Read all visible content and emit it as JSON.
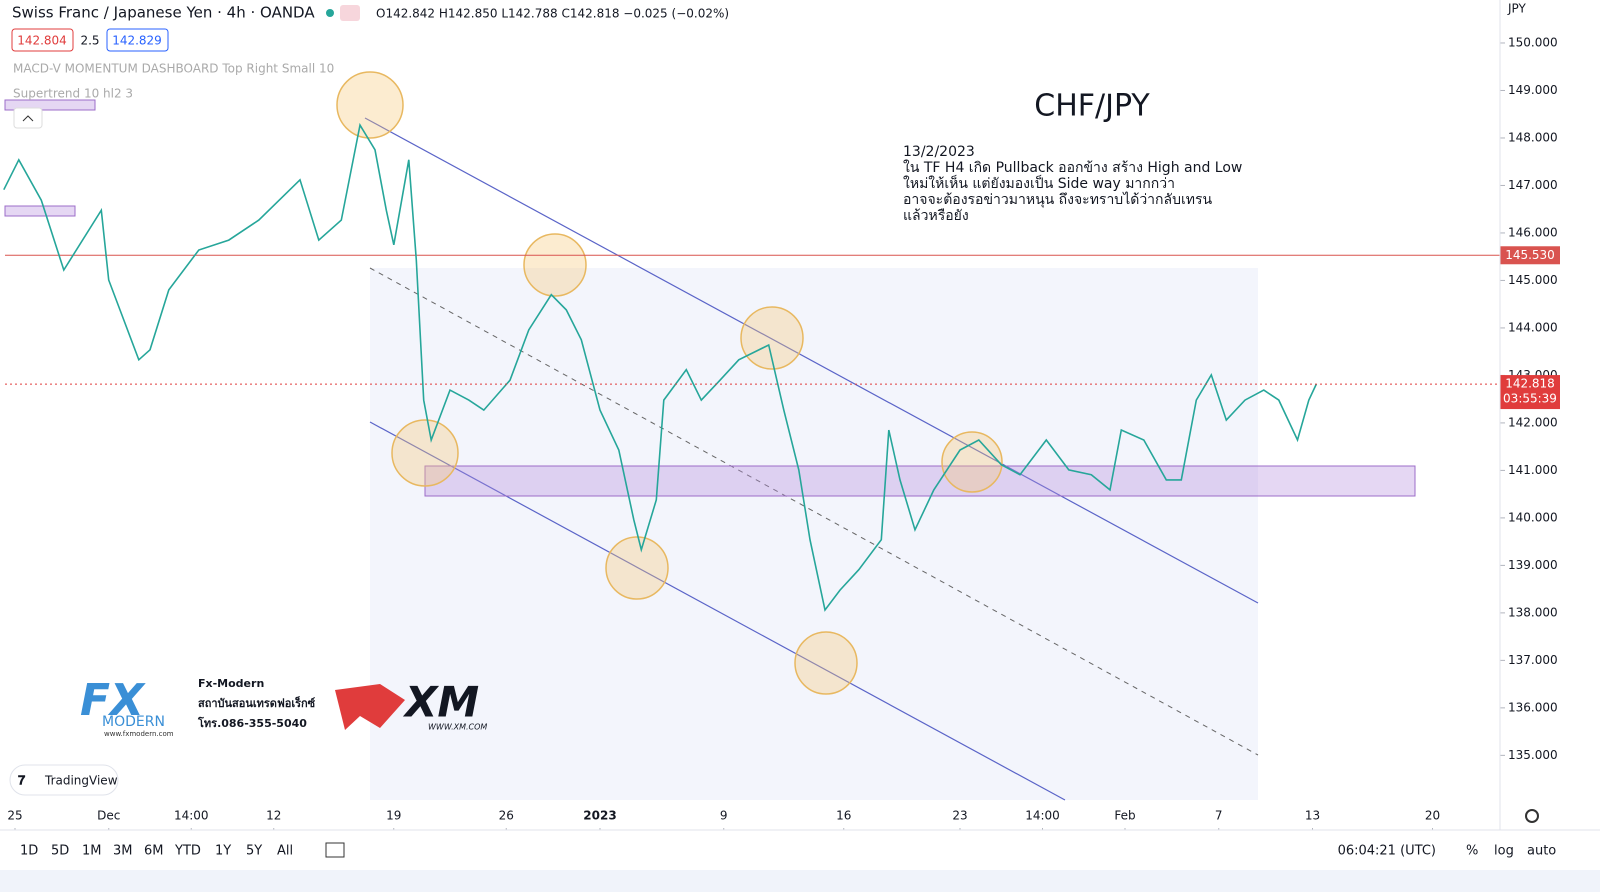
{
  "header": {
    "symbol": "Swiss Franc / Japanese Yen · 4h · OANDA",
    "ohlc": "O142.842 H142.850 L142.788 C142.818 −0.025 (−0.02%)",
    "bid": "142.804",
    "spread": "2.5",
    "ask": "142.829",
    "indicator_1": "MACD-V MOMENTUM DASHBOARD Top Right Small 10",
    "indicator_2": "Supertrend 10 hl2 3",
    "currency": "JPY"
  },
  "chart_data": {
    "type": "line",
    "title": "CHF/JPY",
    "annotation_lines": [
      "13/2/2023",
      "ใน TF H4 เกิด Pullback ออกข้าง สร้าง High and Low",
      "ใหม่ให้เห็น แต่ยังมองเป็น Side way มากกว่า",
      "อาจจะต้องรอข่าวมาหนุน ถึงจะทราบได้ว่ากลับเทรน",
      "แล้วหรือยัง"
    ],
    "x": [
      1,
      5,
      11,
      17,
      27,
      29,
      37,
      40,
      45,
      53,
      61,
      69,
      80,
      85,
      91,
      96,
      100,
      103,
      105,
      109,
      111,
      113,
      115,
      120,
      125,
      129,
      136,
      141,
      147,
      151,
      155,
      160,
      165,
      169,
      171,
      175,
      177,
      183,
      187,
      192,
      197,
      205,
      209,
      213,
      216,
      220,
      224,
      229,
      235,
      237,
      240,
      244,
      249,
      256,
      261,
      267,
      272,
      279,
      285,
      291,
      296,
      299,
      305,
      311,
      315,
      319,
      323,
      327,
      332,
      337,
      341,
      346,
      349,
      351
    ],
    "values": [
      146.91,
      147.54,
      146.69,
      145.22,
      146.48,
      145.01,
      143.33,
      143.54,
      144.8,
      145.64,
      145.85,
      146.27,
      147.12,
      145.85,
      146.27,
      148.27,
      147.75,
      146.48,
      145.75,
      147.54,
      145.43,
      142.48,
      141.64,
      142.69,
      142.48,
      142.27,
      142.9,
      143.96,
      144.7,
      144.38,
      143.75,
      142.27,
      141.43,
      139.96,
      139.33,
      140.38,
      142.48,
      143.12,
      142.48,
      142.9,
      143.33,
      143.64,
      142.27,
      141.01,
      139.54,
      138.06,
      138.48,
      138.91,
      139.54,
      141.85,
      140.8,
      139.75,
      140.59,
      141.43,
      141.64,
      141.12,
      140.91,
      141.64,
      141.01,
      140.91,
      140.59,
      141.85,
      141.64,
      140.8,
      140.8,
      142.48,
      143.01,
      142.06,
      142.48,
      142.69,
      142.48,
      141.64,
      142.48,
      142.818
    ],
    "color": "#26a69a",
    "xlim": [
      0,
      400
    ],
    "xticks": [
      {
        "value": 4,
        "label": "25"
      },
      {
        "value": 29,
        "label": "Dec"
      },
      {
        "value": 51,
        "label": "14:00"
      },
      {
        "value": 73,
        "label": "12"
      },
      {
        "value": 105,
        "label": "19"
      },
      {
        "value": 135,
        "label": "26"
      },
      {
        "value": 160,
        "label": "2023"
      },
      {
        "value": 193,
        "label": "9"
      },
      {
        "value": 225,
        "label": "16"
      },
      {
        "value": 256,
        "label": "23"
      },
      {
        "value": 278,
        "label": "14:00"
      },
      {
        "value": 300,
        "label": "Feb"
      },
      {
        "value": 325,
        "label": "7"
      },
      {
        "value": 350,
        "label": "13"
      },
      {
        "value": 382,
        "label": "20"
      }
    ],
    "ylim": [
      134.06,
      150.905
    ],
    "yticks": [
      {
        "value": 135,
        "label": "135.000"
      },
      {
        "value": 136,
        "label": "136.000"
      },
      {
        "value": 137,
        "label": "137.000"
      },
      {
        "value": 138,
        "label": "138.000"
      },
      {
        "value": 139,
        "label": "139.000"
      },
      {
        "value": 140,
        "label": "140.000"
      },
      {
        "value": 141,
        "label": "141.000"
      },
      {
        "value": 142,
        "label": "142.000"
      },
      {
        "value": 143,
        "label": "143.000"
      },
      {
        "value": 144,
        "label": "144.000"
      },
      {
        "value": 145,
        "label": "145.000"
      },
      {
        "value": 146,
        "label": "146.000"
      },
      {
        "value": 147,
        "label": "147.000"
      },
      {
        "value": 148,
        "label": "148.000"
      },
      {
        "value": 149,
        "label": "149.000"
      },
      {
        "value": 150,
        "label": "150.000"
      }
    ],
    "hline": {
      "value": 145.53,
      "label": "145.530",
      "color": "#d9534f"
    },
    "last_price": {
      "value": 142.818,
      "label": "142.818",
      "countdown": "03:55:39",
      "color": "#e03c3c"
    }
  },
  "toolbar": {
    "ranges": [
      "1D",
      "5D",
      "1M",
      "3M",
      "6M",
      "YTD",
      "1Y",
      "5Y",
      "All"
    ],
    "clock": "06:04:21 (UTC)",
    "options": [
      "%",
      "log",
      "auto"
    ]
  },
  "branding": {
    "fx_logo": "FX",
    "fx_sub": "MODERN",
    "fx_url": "www.fxmodern.com",
    "fx_name": "Fx-Modern",
    "fx_thai": "สถาบันสอนเทรดฟอเร็กซ์",
    "fx_phone": "โทร.086-355-5040",
    "xm": "XM",
    "xm_url": "WWW.XM.COM",
    "tradingview": "TradingView"
  }
}
